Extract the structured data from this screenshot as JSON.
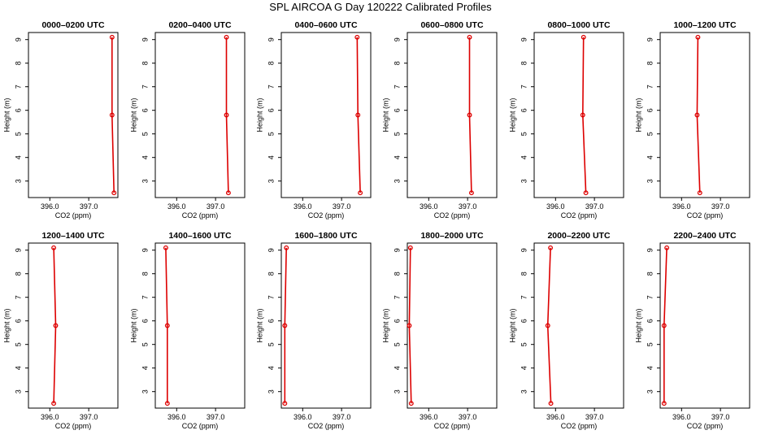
{
  "title": "SPL AIRCOA G  Day 120222  Calibrated Profiles",
  "colors": {
    "series": "#dd0000",
    "axis": "#000000"
  },
  "chart_data": [
    {
      "type": "line",
      "title": "0000–0200 UTC",
      "xlabel": "CO2 (ppm)",
      "ylabel": "Height (m)",
      "xlim": [
        395.45,
        397.75
      ],
      "ylim": [
        2.3,
        9.3
      ],
      "xticks": [
        396.0,
        397.0
      ],
      "xtick_labels": [
        "396.0",
        "397.0"
      ],
      "yticks": [
        3,
        4,
        5,
        6,
        7,
        8,
        9
      ],
      "ytick_labels": [
        "3",
        "4",
        "5",
        "6",
        "7",
        "8",
        "9"
      ],
      "height": [
        9.1,
        5.8,
        2.5
      ],
      "co2": [
        397.6,
        397.6,
        397.65
      ]
    },
    {
      "type": "line",
      "title": "0200–0400 UTC",
      "xlabel": "CO2 (ppm)",
      "ylabel": "Height (m)",
      "xlim": [
        395.45,
        397.75
      ],
      "ylim": [
        2.3,
        9.3
      ],
      "xticks": [
        396.0,
        397.0
      ],
      "xtick_labels": [
        "396.0",
        "397.0"
      ],
      "yticks": [
        3,
        4,
        5,
        6,
        7,
        8,
        9
      ],
      "ytick_labels": [
        "3",
        "4",
        "5",
        "6",
        "7",
        "8",
        "9"
      ],
      "height": [
        9.1,
        5.8,
        2.5
      ],
      "co2": [
        397.28,
        397.28,
        397.33
      ]
    },
    {
      "type": "line",
      "title": "0400–0600 UTC",
      "xlabel": "CO2 (ppm)",
      "ylabel": "Height (m)",
      "xlim": [
        395.45,
        397.75
      ],
      "ylim": [
        2.3,
        9.3
      ],
      "xticks": [
        396.0,
        397.0
      ],
      "xtick_labels": [
        "396.0",
        "397.0"
      ],
      "yticks": [
        3,
        4,
        5,
        6,
        7,
        8,
        9
      ],
      "ytick_labels": [
        "3",
        "4",
        "5",
        "6",
        "7",
        "8",
        "9"
      ],
      "height": [
        9.1,
        5.8,
        2.5
      ],
      "co2": [
        397.4,
        397.42,
        397.48
      ]
    },
    {
      "type": "line",
      "title": "0600–0800 UTC",
      "xlabel": "CO2 (ppm)",
      "ylabel": "Height (m)",
      "xlim": [
        395.45,
        397.75
      ],
      "ylim": [
        2.3,
        9.3
      ],
      "xticks": [
        396.0,
        397.0
      ],
      "xtick_labels": [
        "396.0",
        "397.0"
      ],
      "yticks": [
        3,
        4,
        5,
        6,
        7,
        8,
        9
      ],
      "ytick_labels": [
        "3",
        "4",
        "5",
        "6",
        "7",
        "8",
        "9"
      ],
      "height": [
        9.1,
        5.8,
        2.5
      ],
      "co2": [
        397.05,
        397.05,
        397.1
      ]
    },
    {
      "type": "line",
      "title": "0800–1000 UTC",
      "xlabel": "CO2 (ppm)",
      "ylabel": "Height (m)",
      "xlim": [
        395.45,
        397.75
      ],
      "ylim": [
        2.3,
        9.3
      ],
      "xticks": [
        396.0,
        397.0
      ],
      "xtick_labels": [
        "396.0",
        "397.0"
      ],
      "yticks": [
        3,
        4,
        5,
        6,
        7,
        8,
        9
      ],
      "ytick_labels": [
        "3",
        "4",
        "5",
        "6",
        "7",
        "8",
        "9"
      ],
      "height": [
        9.1,
        5.8,
        2.5
      ],
      "co2": [
        396.72,
        396.7,
        396.78
      ]
    },
    {
      "type": "line",
      "title": "1000–1200 UTC",
      "xlabel": "CO2 (ppm)",
      "ylabel": "Height (m)",
      "xlim": [
        395.45,
        397.75
      ],
      "ylim": [
        2.3,
        9.3
      ],
      "xticks": [
        396.0,
        397.0
      ],
      "xtick_labels": [
        "396.0",
        "397.0"
      ],
      "yticks": [
        3,
        4,
        5,
        6,
        7,
        8,
        9
      ],
      "ytick_labels": [
        "3",
        "4",
        "5",
        "6",
        "7",
        "8",
        "9"
      ],
      "height": [
        9.1,
        5.8,
        2.5
      ],
      "co2": [
        396.42,
        396.4,
        396.47
      ]
    },
    {
      "type": "line",
      "title": "1200–1400 UTC",
      "xlabel": "CO2 (ppm)",
      "ylabel": "Height (m)",
      "xlim": [
        395.45,
        397.75
      ],
      "ylim": [
        2.3,
        9.3
      ],
      "xticks": [
        396.0,
        397.0
      ],
      "xtick_labels": [
        "396.0",
        "397.0"
      ],
      "yticks": [
        3,
        4,
        5,
        6,
        7,
        8,
        9
      ],
      "ytick_labels": [
        "3",
        "4",
        "5",
        "6",
        "7",
        "8",
        "9"
      ],
      "height": [
        9.1,
        5.8,
        2.5
      ],
      "co2": [
        396.1,
        396.15,
        396.1
      ]
    },
    {
      "type": "line",
      "title": "1400–1600 UTC",
      "xlabel": "CO2 (ppm)",
      "ylabel": "Height (m)",
      "xlim": [
        395.45,
        397.75
      ],
      "ylim": [
        2.3,
        9.3
      ],
      "xticks": [
        396.0,
        397.0
      ],
      "xtick_labels": [
        "396.0",
        "397.0"
      ],
      "yticks": [
        3,
        4,
        5,
        6,
        7,
        8,
        9
      ],
      "ytick_labels": [
        "3",
        "4",
        "5",
        "6",
        "7",
        "8",
        "9"
      ],
      "height": [
        9.1,
        5.8,
        2.5
      ],
      "co2": [
        395.72,
        395.76,
        395.76
      ]
    },
    {
      "type": "line",
      "title": "1600–1800 UTC",
      "xlabel": "CO2 (ppm)",
      "ylabel": "Height (m)",
      "xlim": [
        395.45,
        397.75
      ],
      "ylim": [
        2.3,
        9.3
      ],
      "xticks": [
        396.0,
        397.0
      ],
      "xtick_labels": [
        "396.0",
        "397.0"
      ],
      "yticks": [
        3,
        4,
        5,
        6,
        7,
        8,
        9
      ],
      "ytick_labels": [
        "3",
        "4",
        "5",
        "6",
        "7",
        "8",
        "9"
      ],
      "height": [
        9.1,
        5.8,
        2.5
      ],
      "co2": [
        395.58,
        395.54,
        395.54
      ]
    },
    {
      "type": "line",
      "title": "1800–2000 UTC",
      "xlabel": "CO2 (ppm)",
      "ylabel": "Height (m)",
      "xlim": [
        395.45,
        397.75
      ],
      "ylim": [
        2.3,
        9.3
      ],
      "xticks": [
        396.0,
        397.0
      ],
      "xtick_labels": [
        "396.0",
        "397.0"
      ],
      "yticks": [
        3,
        4,
        5,
        6,
        7,
        8,
        9
      ],
      "ytick_labels": [
        "3",
        "4",
        "5",
        "6",
        "7",
        "8",
        "9"
      ],
      "height": [
        9.1,
        5.8,
        2.5
      ],
      "co2": [
        395.53,
        395.5,
        395.55
      ]
    },
    {
      "type": "line",
      "title": "2000–2200 UTC",
      "xlabel": "CO2 (ppm)",
      "ylabel": "Height (m)",
      "xlim": [
        395.45,
        397.75
      ],
      "ylim": [
        2.3,
        9.3
      ],
      "xticks": [
        396.0,
        397.0
      ],
      "xtick_labels": [
        "396.0",
        "397.0"
      ],
      "yticks": [
        3,
        4,
        5,
        6,
        7,
        8,
        9
      ],
      "ytick_labels": [
        "3",
        "4",
        "5",
        "6",
        "7",
        "8",
        "9"
      ],
      "height": [
        9.1,
        5.8,
        2.5
      ],
      "co2": [
        395.87,
        395.8,
        395.88
      ]
    },
    {
      "type": "line",
      "title": "2200–2400 UTC",
      "xlabel": "CO2 (ppm)",
      "ylabel": "Height (m)",
      "xlim": [
        395.45,
        397.75
      ],
      "ylim": [
        2.3,
        9.3
      ],
      "xticks": [
        396.0,
        397.0
      ],
      "xtick_labels": [
        "396.0",
        "397.0"
      ],
      "yticks": [
        3,
        4,
        5,
        6,
        7,
        8,
        9
      ],
      "ytick_labels": [
        "3",
        "4",
        "5",
        "6",
        "7",
        "8",
        "9"
      ],
      "height": [
        9.1,
        5.8,
        2.5
      ],
      "co2": [
        395.62,
        395.55,
        395.55
      ]
    }
  ]
}
